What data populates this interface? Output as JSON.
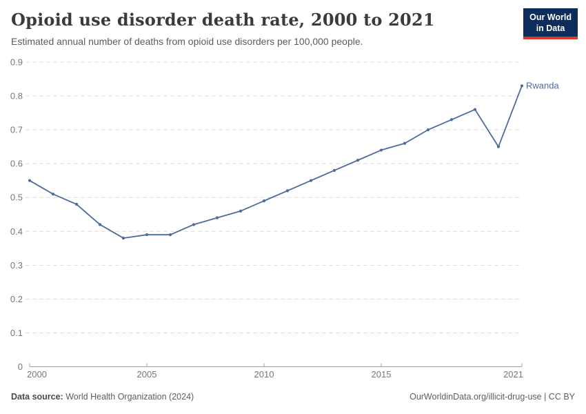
{
  "header": {
    "title": "Opioid use disorder death rate, 2000 to 2021",
    "subtitle": "Estimated annual number of deaths from opioid use disorders per 100,000 people.",
    "logo": {
      "line1": "Our World",
      "line2": "in Data"
    }
  },
  "chart_data": {
    "type": "line",
    "title": "Opioid use disorder death rate, 2000 to 2021",
    "x": [
      2000,
      2001,
      2002,
      2003,
      2004,
      2005,
      2006,
      2007,
      2008,
      2009,
      2010,
      2011,
      2012,
      2013,
      2014,
      2015,
      2016,
      2017,
      2018,
      2019,
      2020,
      2021
    ],
    "series": [
      {
        "name": "Rwanda",
        "values": [
          0.55,
          0.51,
          0.48,
          0.42,
          0.38,
          0.39,
          0.39,
          0.42,
          0.44,
          0.46,
          0.49,
          0.52,
          0.55,
          0.58,
          0.61,
          0.64,
          0.66,
          0.7,
          0.73,
          0.76,
          0.65,
          0.83
        ]
      }
    ],
    "x_ticks": [
      2000,
      2005,
      2010,
      2015,
      2021
    ],
    "y_ticks": [
      0,
      0.1,
      0.2,
      0.3,
      0.4,
      0.5,
      0.6,
      0.7,
      0.8,
      0.9
    ],
    "xlim": [
      2000,
      2021
    ],
    "ylim": [
      0,
      0.9
    ],
    "xlabel": "",
    "ylabel": "",
    "grid": "horizontal-dashed",
    "legend_position": "line-end-label"
  },
  "footer": {
    "source_label": "Data source:",
    "source_value": " World Health Organization (2024)",
    "credit": "OurWorldinData.org/illicit-drug-use | CC BY"
  },
  "colors": {
    "line": "#4c6a9c",
    "entity_label": "#4c6a9c",
    "grid": "#dcdcdc",
    "axis": "#a0a0a0",
    "tick_label": "#777777",
    "logo_bg": "#0d2e5c",
    "logo_bar": "#dc3a2b"
  }
}
